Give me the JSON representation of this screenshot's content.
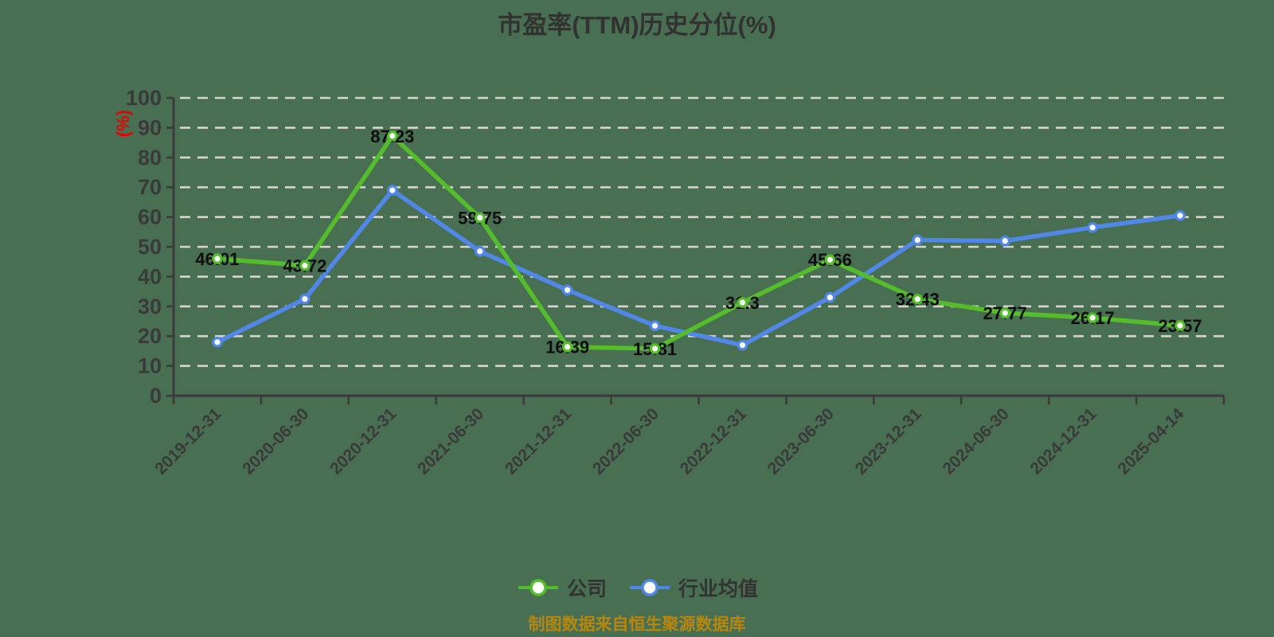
{
  "background_color": "#496F52",
  "chart_data": {
    "type": "line",
    "title": "市盈率(TTM)历史分位(%)",
    "ylabel": "(%)",
    "footer": "制图数据来自恒生聚源数据库",
    "categories": [
      "2019-12-31",
      "2020-06-30",
      "2020-12-31",
      "2021-06-30",
      "2021-12-31",
      "2022-06-30",
      "2022-12-31",
      "2023-06-30",
      "2023-12-31",
      "2024-06-30",
      "2024-12-31",
      "2025-04-14"
    ],
    "series": [
      {
        "key": "company",
        "name": "公司",
        "color": "#55BD2B",
        "values": [
          46.01,
          43.72,
          87.23,
          59.75,
          16.39,
          15.81,
          31.3,
          45.66,
          32.43,
          27.77,
          26.17,
          23.57
        ],
        "data_labels": true
      },
      {
        "key": "industry-average",
        "name": "行业均值",
        "color": "#5187E9",
        "values": [
          18,
          32.5,
          69,
          48.5,
          35.5,
          23.5,
          17,
          33,
          52.3,
          52,
          56.5,
          60.5
        ],
        "data_labels": false
      }
    ],
    "ylim": [
      0,
      100
    ],
    "yticks": [
      0,
      10,
      20,
      30,
      40,
      50,
      60,
      70,
      80,
      90,
      100
    ],
    "grid": "horizontal-dashed",
    "legend_position": "bottom",
    "styles": {
      "grid_color": "#D8D5D1",
      "axis_color": "#3B3B3B",
      "tick_label_color": "#3A3A3A",
      "title_color": "#323232",
      "data_label_color": "#0E0E0E",
      "ylabel_color": "#E60000",
      "footer_color": "#B8860B",
      "legend_text_color": "#333333",
      "marker_fill": "#FFFFFF"
    }
  }
}
